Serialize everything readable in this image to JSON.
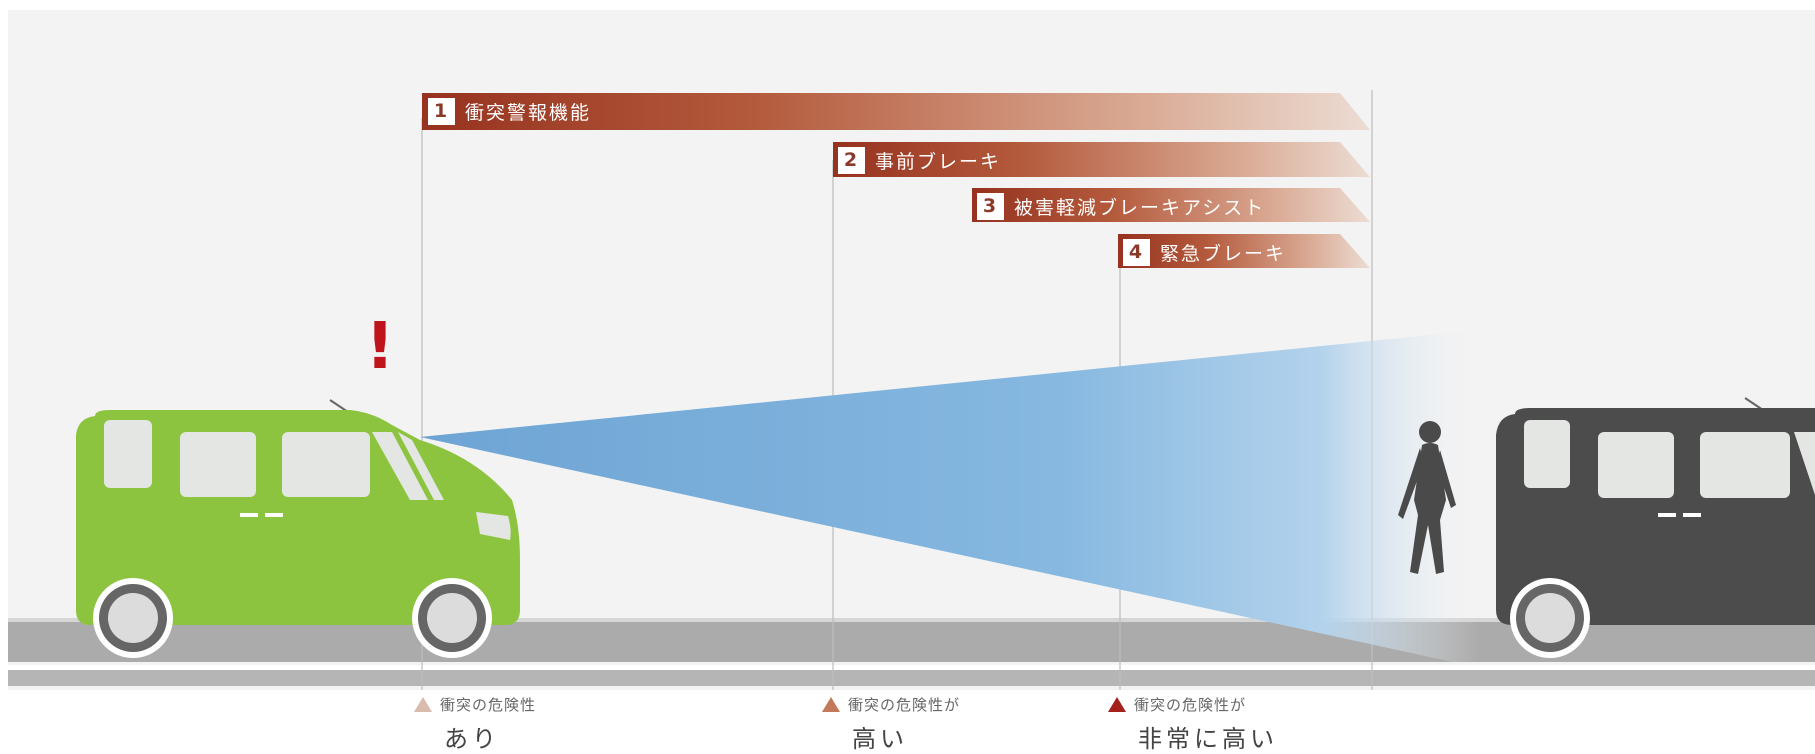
{
  "bands": [
    {
      "number": "1",
      "label": "衝突警報機能"
    },
    {
      "number": "2",
      "label": "事前ブレーキ"
    },
    {
      "number": "3",
      "label": "被害軽減ブレーキアシスト"
    },
    {
      "number": "4",
      "label": "緊急ブレーキ"
    }
  ],
  "risk_levels": [
    {
      "line1": "衝突の危険性",
      "line2": "あり",
      "color": "#d9bcae"
    },
    {
      "line1": "衝突の危険性が",
      "line2": "高い",
      "color": "#c27a5a"
    },
    {
      "line1": "衝突の危険性が",
      "line2": "非常に高い",
      "color": "#a4211c"
    }
  ],
  "warning_mark": "!",
  "colors": {
    "band_dark": "#9c3a26",
    "car_own": "#8cc43f",
    "car_ahead": "#4a4a4a",
    "sensor": "#79acd8",
    "warning": "#c0141c",
    "road": "#aaaaaa"
  }
}
